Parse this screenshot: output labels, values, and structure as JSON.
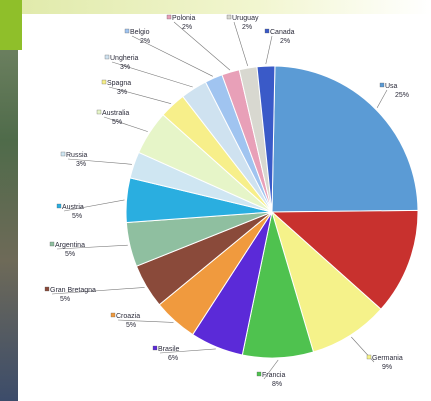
{
  "chart_data": {
    "type": "pie",
    "title": "",
    "slices": [
      {
        "label": "Usa",
        "value": 25,
        "value_label": "25%",
        "color": "#5b9bd5"
      },
      {
        "label": "",
        "value": 12,
        "value_label": "",
        "color": "#c8312e"
      },
      {
        "label": "Germania",
        "value": 9,
        "value_label": "9%",
        "color": "#f5f28a"
      },
      {
        "label": "Francia",
        "value": 8,
        "value_label": "8%",
        "color": "#4fc24f"
      },
      {
        "label": "Brasile",
        "value": 6,
        "value_label": "6%",
        "color": "#5b2ad8"
      },
      {
        "label": "Croazia",
        "value": 5,
        "value_label": "5%",
        "color": "#f09a3e"
      },
      {
        "label": "Gran Bretagna",
        "value": 5,
        "value_label": "5%",
        "color": "#8a4a3a"
      },
      {
        "label": "Argentina",
        "value": 5,
        "value_label": "5%",
        "color": "#8fbfa0"
      },
      {
        "label": "Austria",
        "value": 5,
        "value_label": "5%",
        "color": "#2aaee0"
      },
      {
        "label": "Russia",
        "value": 3,
        "value_label": "3%",
        "color": "#cfe6f2"
      },
      {
        "label": "Australia",
        "value": 5,
        "value_label": "5%",
        "color": "#e6f5c8"
      },
      {
        "label": "Spagna",
        "value": 3,
        "value_label": "3%",
        "color": "#f7ef8a"
      },
      {
        "label": "Ungheria",
        "value": 3,
        "value_label": "3%",
        "color": "#cfe2f0"
      },
      {
        "label": "Belgio",
        "value": 2,
        "value_label": "2%",
        "color": "#a0c4f0"
      },
      {
        "label": "Polonia",
        "value": 2,
        "value_label": "2%",
        "color": "#e8a0b8"
      },
      {
        "label": "Uruguay",
        "value": 2,
        "value_label": "2%",
        "color": "#d8d8d0"
      },
      {
        "label": "Canada",
        "value": 2,
        "value_label": "2%",
        "color": "#3a5ac8"
      }
    ],
    "legend": "none"
  }
}
